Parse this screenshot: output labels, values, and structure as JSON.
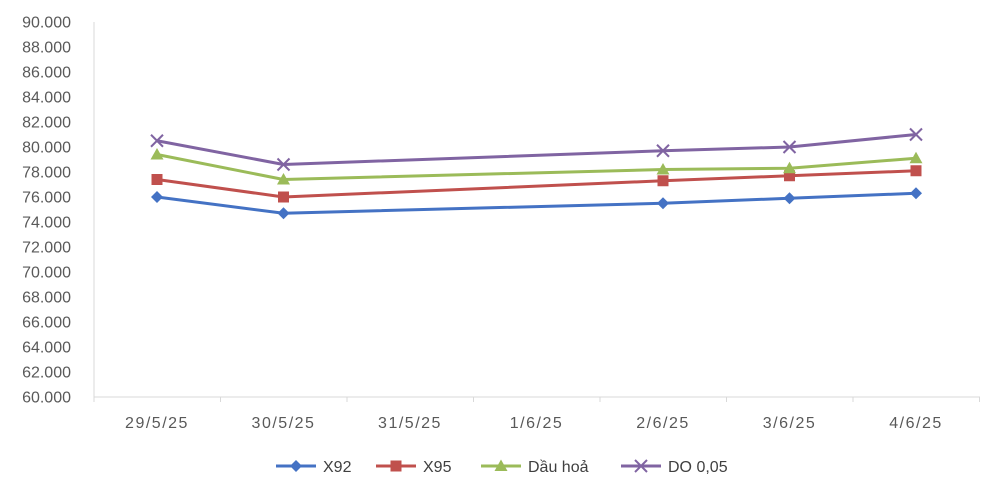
{
  "chart_data": {
    "type": "line",
    "title": "",
    "xlabel": "",
    "ylabel": "",
    "categories": [
      "29/5/25",
      "30/5/25",
      "31/5/25",
      "1/6/25",
      "2/6/25",
      "3/6/25",
      "4/6/25"
    ],
    "y_ticks": [
      "60.000",
      "62.000",
      "64.000",
      "66.000",
      "68.000",
      "70.000",
      "72.000",
      "74.000",
      "76.000",
      "78.000",
      "80.000",
      "82.000",
      "84.000",
      "86.000",
      "88.000",
      "90.000"
    ],
    "ylim": [
      60000,
      90000
    ],
    "grid": false,
    "legend_position": "bottom",
    "series": [
      {
        "name": "X92",
        "color": "#4472C4",
        "marker": "diamond",
        "values": [
          76000,
          74700,
          null,
          null,
          75500,
          75900,
          76300
        ]
      },
      {
        "name": "X95",
        "color": "#C0504D",
        "marker": "square",
        "values": [
          77400,
          76000,
          null,
          null,
          77300,
          77700,
          78100
        ]
      },
      {
        "name": "Dầu hoả",
        "color": "#9BBB59",
        "marker": "triangle",
        "values": [
          79400,
          77400,
          null,
          null,
          78200,
          78300,
          79100
        ]
      },
      {
        "name": "DO 0,05",
        "color": "#8064A2",
        "marker": "x",
        "values": [
          80500,
          78600,
          null,
          null,
          79700,
          80000,
          81000
        ]
      }
    ]
  }
}
